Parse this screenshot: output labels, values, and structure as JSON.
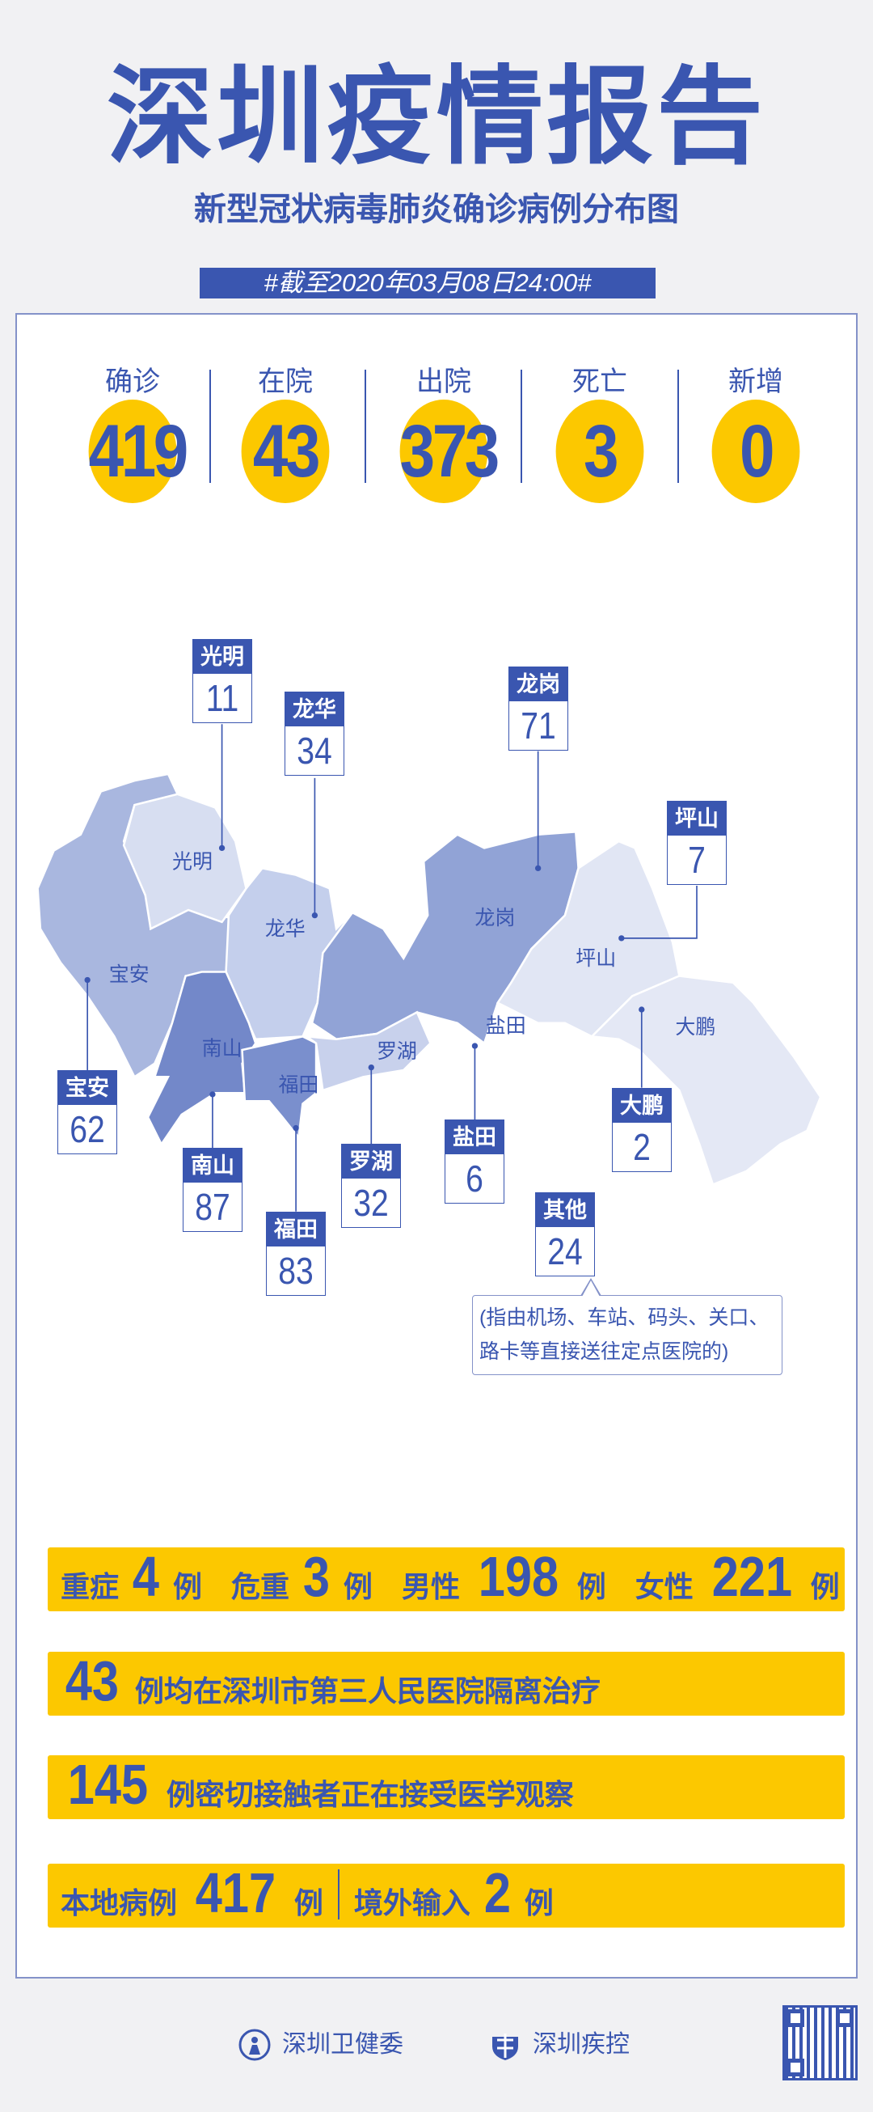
{
  "header": {
    "title": "深圳疫情报告",
    "subtitle": "新型冠状病毒肺炎确诊病例分布图",
    "date": "#截至2020年03月08日24:00#"
  },
  "stats": [
    {
      "label": "确诊",
      "value": "419"
    },
    {
      "label": "在院",
      "value": "43"
    },
    {
      "label": "出院",
      "value": "373"
    },
    {
      "label": "死亡",
      "value": "3"
    },
    {
      "label": "新增",
      "value": "0"
    }
  ],
  "districts": [
    {
      "name": "光明",
      "value": "11"
    },
    {
      "name": "龙华",
      "value": "34"
    },
    {
      "name": "龙岗",
      "value": "71"
    },
    {
      "name": "坪山",
      "value": "7"
    },
    {
      "name": "宝安",
      "value": "62"
    },
    {
      "name": "南山",
      "value": "87"
    },
    {
      "name": "福田",
      "value": "83"
    },
    {
      "name": "罗湖",
      "value": "32"
    },
    {
      "name": "盐田",
      "value": "6"
    },
    {
      "name": "大鹏",
      "value": "2"
    },
    {
      "name": "其他",
      "value": "24"
    }
  ],
  "other_note": "(指由机场、车站、码头、关口、路卡等直接送往定点医院的)",
  "summary": {
    "severe_label": "重症",
    "severe": "4",
    "critical_label": "危重",
    "critical": "3",
    "male_label": "男性",
    "male": "198",
    "female_label": "女性",
    "female": "221",
    "unit": "例",
    "hospital_count": "43",
    "hospital_text": "例均在深圳市第三人民医院隔离治疗",
    "contacts_count": "145",
    "contacts_text": "例密切接触者正在接受医学观察",
    "local_label": "本地病例",
    "local": "417",
    "imported_label": "境外输入",
    "imported": "2"
  },
  "footer": {
    "org1": "深圳卫健委",
    "org2": "深圳疾控"
  },
  "colors": {
    "blue": "#3a56b0",
    "yellow": "#fcc800"
  }
}
